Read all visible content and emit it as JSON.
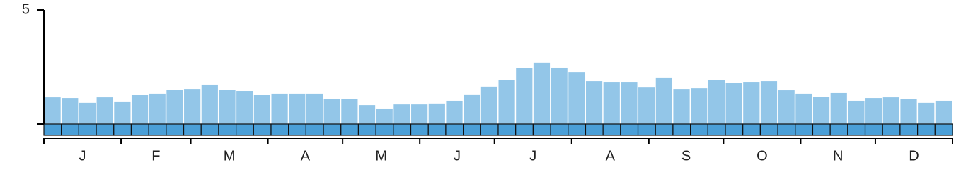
{
  "chart_data": {
    "type": "bar",
    "categories": [
      null,
      null,
      null,
      null,
      null,
      null,
      null,
      null,
      null,
      null,
      null,
      null,
      null,
      null,
      null,
      null,
      null,
      null,
      null,
      null,
      null,
      null,
      null,
      null,
      null,
      null,
      null,
      null,
      null,
      null,
      null,
      null,
      null,
      null,
      null,
      null,
      null,
      null,
      null,
      null,
      null,
      null,
      null,
      null,
      null,
      null,
      null,
      null,
      null,
      null,
      null,
      null
    ],
    "values": [
      1.17,
      1.14,
      0.93,
      1.17,
      0.99,
      1.27,
      1.33,
      1.51,
      1.54,
      1.73,
      1.51,
      1.45,
      1.27,
      1.33,
      1.33,
      1.33,
      1.11,
      1.11,
      0.83,
      0.68,
      0.86,
      0.86,
      0.9,
      1.02,
      1.3,
      1.64,
      1.94,
      2.44,
      2.69,
      2.47,
      2.28,
      1.88,
      1.85,
      1.85,
      1.6,
      2.04,
      1.54,
      1.57,
      1.94,
      1.79,
      1.85,
      1.88,
      1.48,
      1.33,
      1.2,
      1.36,
      1.02,
      1.14,
      1.17,
      1.08,
      0.93,
      1.02
    ],
    "color": "#93c6e8",
    "month_labels": [
      "J",
      "F",
      "M",
      "A",
      "M",
      "J",
      "J",
      "A",
      "S",
      "O",
      "N",
      "D"
    ],
    "ylim": [
      0,
      5
    ],
    "yticks": [
      5
    ]
  }
}
